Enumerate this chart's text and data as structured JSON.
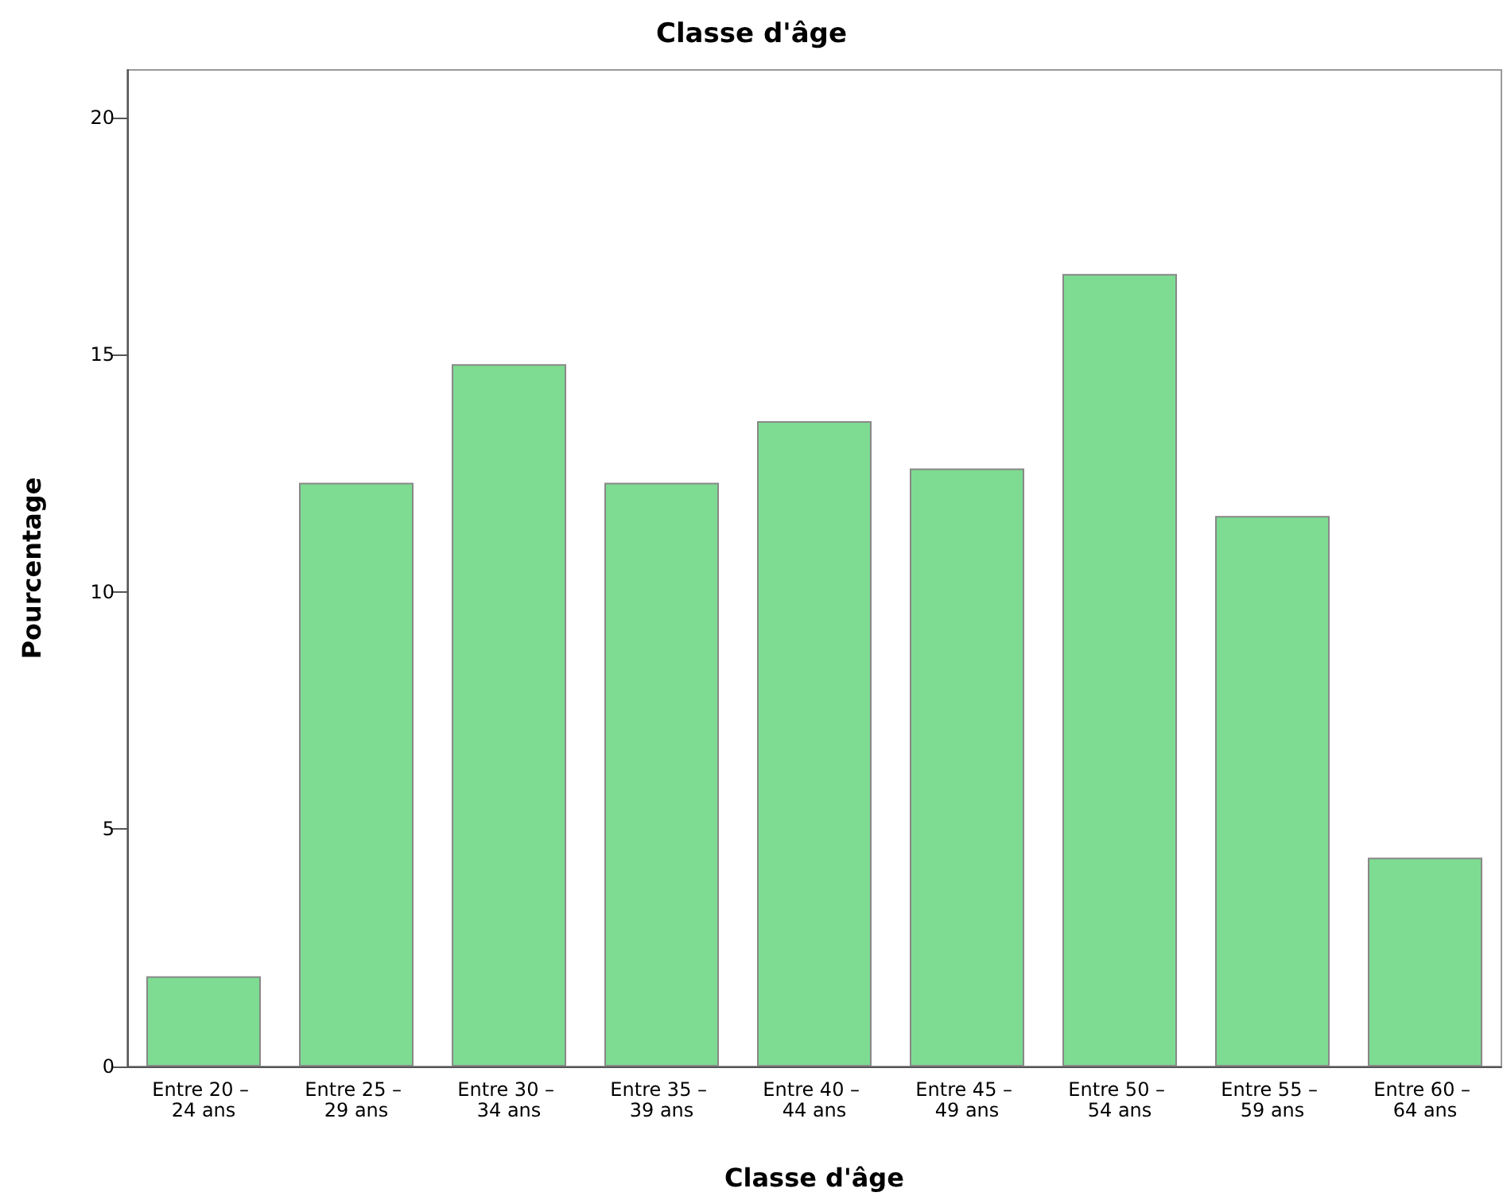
{
  "chart_data": {
    "type": "bar",
    "title": "Classe d'âge",
    "xlabel": "Classe d'âge",
    "ylabel": "Pourcentage",
    "categories": [
      "Entre 20 – 24 ans",
      "Entre 25 – 29 ans",
      "Entre 30 – 34 ans",
      "Entre 35 – 39 ans",
      "Entre 40 – 44 ans",
      "Entre 45 – 49 ans",
      "Entre 50 – 54 ans",
      "Entre 55 – 59 ans",
      "Entre 60 – 64 ans"
    ],
    "values": [
      1.9,
      12.3,
      14.8,
      12.3,
      13.6,
      12.6,
      16.7,
      11.6,
      4.4
    ],
    "color": "#7ddc91",
    "ylim": [
      0,
      21
    ],
    "yticks": [
      0,
      5,
      10,
      15,
      20
    ],
    "grid": false
  }
}
